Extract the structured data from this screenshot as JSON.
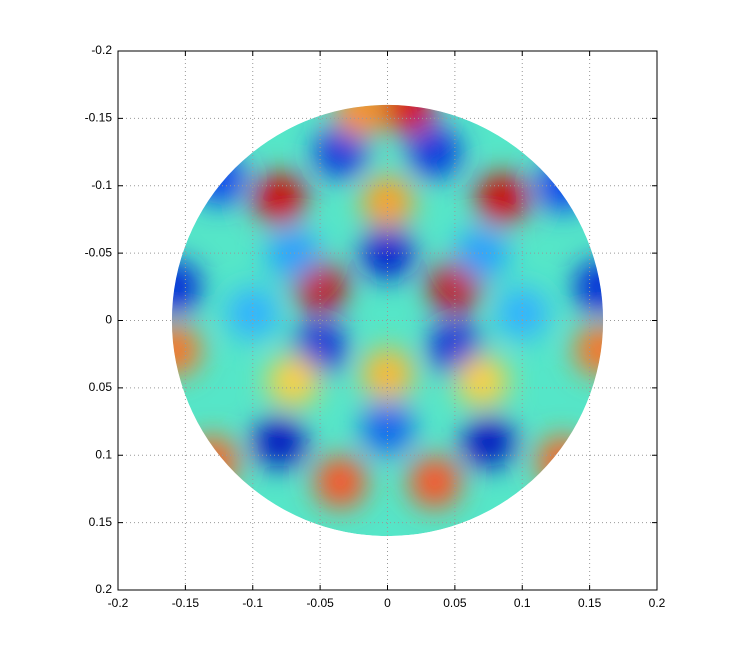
{
  "chart_data": {
    "type": "disk-field",
    "xlim": [
      -0.2,
      0.2
    ],
    "ylim": [
      -0.2,
      0.2
    ],
    "y_reversed": true,
    "xticks": [
      -0.2,
      -0.15,
      -0.1,
      -0.05,
      0,
      0.05,
      0.1,
      0.15,
      0.2
    ],
    "yticks": [
      -0.2,
      -0.15,
      -0.1,
      -0.05,
      0,
      0.05,
      0.1,
      0.15,
      0.2
    ],
    "grid": true,
    "disk_radius": 0.16,
    "background_color": "#55e6c8",
    "spots": {
      "x": [
        -0.08,
        0.085,
        -0.05,
        0.05,
        0,
        0,
        -0.05,
        0.05,
        0,
        0,
        -0.08,
        0.075,
        -0.035,
        0.035,
        -0.035,
        0.035,
        0.015,
        -0.02,
        -0.158,
        0.158,
        -0.158,
        0.158,
        -0.13,
        0.13,
        -0.125,
        0.13,
        -0.07,
        0.07,
        -0.07,
        0.07,
        -0.1,
        0.1
      ],
      "y": [
        -0.09,
        -0.09,
        -0.025,
        -0.025,
        -0.088,
        -0.05,
        0.02,
        0.02,
        0.04,
        0.08,
        0.09,
        0.09,
        0.12,
        0.12,
        -0.125,
        -0.125,
        -0.158,
        -0.155,
        -0.025,
        -0.025,
        0.022,
        0.022,
        0.105,
        0.105,
        -0.105,
        -0.1,
        0.045,
        0.045,
        -0.05,
        -0.05,
        -0.005,
        -0.005
      ],
      "colors": [
        "#d40000",
        "#d40000",
        "#c80000",
        "#c80000",
        "#ffa020",
        "#0018d0",
        "#0020d8",
        "#0020d8",
        "#ffb830",
        "#1060f0",
        "#0010c0",
        "#0010c0",
        "#ff5020",
        "#ff5020",
        "#0030e0",
        "#0030e0",
        "#e00000",
        "#ff9020",
        "#0020d8",
        "#0020d8",
        "#ff7020",
        "#ff7020",
        "#ff6020",
        "#ff6020",
        "#1040f0",
        "#1040f0",
        "#ffd040",
        "#ffd040",
        "#20a0ff",
        "#20a0ff",
        "#30b0ff",
        "#30b0ff"
      ]
    }
  }
}
